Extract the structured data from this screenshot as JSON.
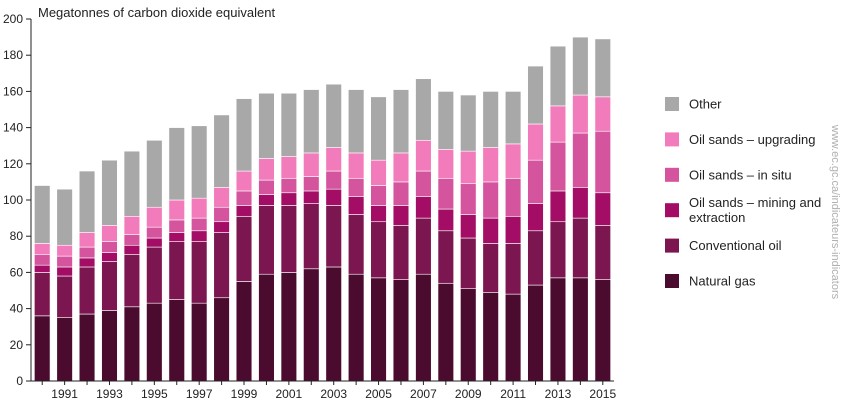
{
  "chart_data": {
    "type": "bar",
    "stacked": true,
    "ylabel": "Megatonnes of carbon dioxide equivalent",
    "ylim": [
      0,
      200
    ],
    "yticks": [
      0,
      20,
      40,
      60,
      80,
      100,
      120,
      140,
      160,
      180,
      200
    ],
    "categories": [
      "1990",
      "1991",
      "1992",
      "1993",
      "1994",
      "1995",
      "1996",
      "1997",
      "1998",
      "1999",
      "2000",
      "2001",
      "2002",
      "2003",
      "2004",
      "2005",
      "2006",
      "2007",
      "2008",
      "2009",
      "2010",
      "2011",
      "2012",
      "2013",
      "2014",
      "2015"
    ],
    "tick_labels": [
      "1991",
      "1993",
      "1995",
      "1997",
      "1999",
      "2001",
      "2003",
      "2005",
      "2007",
      "2009",
      "2011",
      "2013",
      "2015"
    ],
    "grid": false,
    "legend_position": "right",
    "series": [
      {
        "name": "Natural gas",
        "color": "#4a0b2e",
        "values": [
          36,
          35,
          37,
          39,
          41,
          43,
          45,
          43,
          46,
          55,
          59,
          60,
          62,
          63,
          59,
          57,
          56,
          59,
          54,
          51,
          49,
          48,
          53,
          57,
          57,
          56
        ]
      },
      {
        "name": "Conventional oil",
        "color": "#7c1650",
        "values": [
          24,
          23,
          26,
          27,
          29,
          31,
          32,
          34,
          36,
          36,
          38,
          37,
          36,
          34,
          33,
          31,
          30,
          31,
          29,
          28,
          27,
          28,
          30,
          31,
          33,
          30
        ]
      },
      {
        "name": "Oil sands – mining and extraction",
        "color": "#a30d66",
        "values": [
          4,
          5,
          5,
          5,
          5,
          5,
          5,
          6,
          6,
          6,
          6,
          7,
          7,
          9,
          10,
          9,
          11,
          12,
          12,
          13,
          14,
          15,
          15,
          17,
          17,
          18
        ]
      },
      {
        "name": "Oil sands – in situ",
        "color": "#d4549e",
        "values": [
          6,
          6,
          6,
          6,
          6,
          6,
          7,
          7,
          8,
          8,
          8,
          8,
          8,
          10,
          10,
          11,
          13,
          14,
          17,
          17,
          20,
          21,
          24,
          27,
          30,
          34
        ]
      },
      {
        "name": "Oil sands – upgrading",
        "color": "#f27bbb",
        "values": [
          6,
          6,
          8,
          9,
          10,
          11,
          11,
          11,
          11,
          11,
          12,
          12,
          13,
          13,
          14,
          14,
          16,
          17,
          16,
          18,
          19,
          19,
          20,
          20,
          21,
          19
        ]
      },
      {
        "name": "Other",
        "color": "#a8a8a8",
        "values": [
          32,
          31,
          34,
          36,
          36,
          37,
          40,
          40,
          40,
          40,
          36,
          35,
          35,
          35,
          35,
          35,
          35,
          34,
          32,
          31,
          31,
          29,
          32,
          33,
          32,
          32
        ]
      }
    ]
  },
  "credit": "www.ec.gc.ca/indicateurs-indicators"
}
